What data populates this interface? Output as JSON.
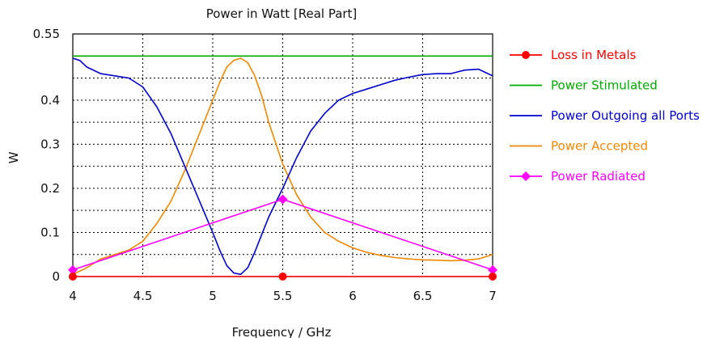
{
  "chart_data": {
    "type": "line",
    "title": "Power in Watt [Real Part]",
    "xlabel": "Frequency / GHz",
    "ylabel": "W",
    "xlim": [
      4,
      7
    ],
    "ylim": [
      0,
      0.55
    ],
    "x_ticks": [
      "4",
      "4.5",
      "5",
      "5.5",
      "6",
      "6.5",
      "7"
    ],
    "x_tick_values": [
      4,
      4.5,
      5,
      5.5,
      6,
      6.5,
      7
    ],
    "y_ticks": [
      "0",
      "0.1",
      "0.2",
      "0.3",
      "0.4",
      "0.55"
    ],
    "y_tick_values": [
      0,
      0.1,
      0.2,
      0.3,
      0.4,
      0.55
    ],
    "grid": true,
    "legend_position": "right",
    "series": [
      {
        "name": "Loss in Metals",
        "color": "#ff0000",
        "marker": "circle",
        "x": [
          4,
          5.5,
          7
        ],
        "y": [
          0,
          0,
          0
        ]
      },
      {
        "name": "Power Stimulated",
        "color": "#00aa00",
        "marker": "none",
        "x": [
          4,
          7
        ],
        "y": [
          0.5,
          0.5
        ]
      },
      {
        "name": "Power Outgoing all Ports",
        "color": "#0000cc",
        "marker": "none",
        "x": [
          4,
          4.05,
          4.1,
          4.2,
          4.3,
          4.4,
          4.5,
          4.6,
          4.7,
          4.8,
          4.9,
          5.0,
          5.05,
          5.1,
          5.15,
          5.2,
          5.25,
          5.3,
          5.35,
          5.4,
          5.5,
          5.6,
          5.7,
          5.8,
          5.9,
          6.0,
          6.1,
          6.2,
          6.3,
          6.4,
          6.5,
          6.6,
          6.7,
          6.8,
          6.9,
          7.0
        ],
        "y": [
          0.495,
          0.49,
          0.475,
          0.46,
          0.455,
          0.45,
          0.43,
          0.385,
          0.325,
          0.25,
          0.175,
          0.1,
          0.06,
          0.025,
          0.008,
          0.005,
          0.02,
          0.055,
          0.095,
          0.135,
          0.2,
          0.27,
          0.33,
          0.37,
          0.4,
          0.415,
          0.425,
          0.435,
          0.445,
          0.452,
          0.458,
          0.46,
          0.46,
          0.468,
          0.47,
          0.455
        ]
      },
      {
        "name": "Power Accepted",
        "color": "#ee8800",
        "marker": "none",
        "x": [
          4,
          4.1,
          4.2,
          4.3,
          4.4,
          4.5,
          4.6,
          4.7,
          4.8,
          4.9,
          5.0,
          5.05,
          5.1,
          5.15,
          5.2,
          5.25,
          5.3,
          5.35,
          5.4,
          5.5,
          5.6,
          5.7,
          5.8,
          5.9,
          6.0,
          6.1,
          6.2,
          6.3,
          6.4,
          6.5,
          6.6,
          6.7,
          6.8,
          6.9,
          7.0
        ],
        "y": [
          0.005,
          0.02,
          0.04,
          0.05,
          0.06,
          0.08,
          0.12,
          0.17,
          0.24,
          0.32,
          0.4,
          0.44,
          0.475,
          0.49,
          0.495,
          0.485,
          0.455,
          0.41,
          0.35,
          0.255,
          0.185,
          0.135,
          0.1,
          0.08,
          0.065,
          0.055,
          0.048,
          0.043,
          0.04,
          0.038,
          0.037,
          0.036,
          0.037,
          0.04,
          0.05
        ]
      },
      {
        "name": "Power Radiated",
        "color": "#ff00ff",
        "marker": "diamond",
        "x": [
          4,
          5.5,
          7
        ],
        "y": [
          0.015,
          0.175,
          0.015
        ]
      }
    ]
  }
}
